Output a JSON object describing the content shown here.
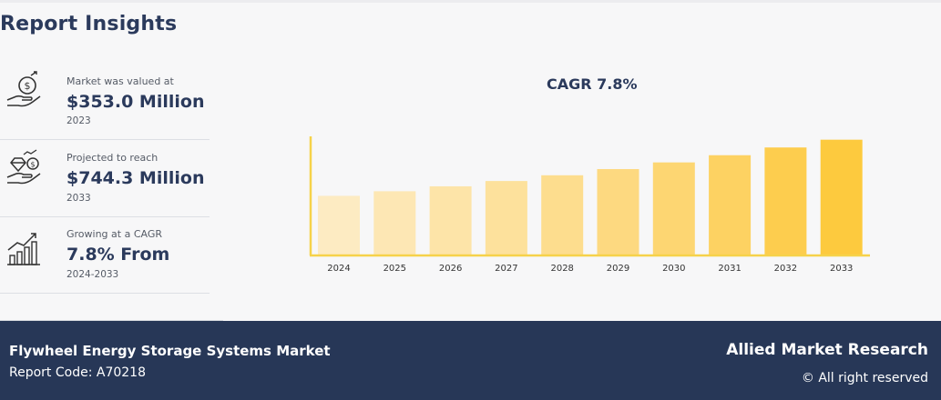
{
  "header": {
    "title": "Report Insights"
  },
  "stats": [
    {
      "caption": "Market was valued at",
      "value": "$353.0 Million",
      "sub": "2023",
      "icon": "money-hand-icon"
    },
    {
      "caption": "Projected to reach",
      "value": "$744.3 Million",
      "sub": "2033",
      "icon": "diamond-coin-hand-icon"
    },
    {
      "caption": "Growing at a CAGR",
      "value": "7.8% From",
      "sub": "2024-2033",
      "icon": "growth-bar-chart-icon"
    }
  ],
  "chart_data": {
    "type": "bar",
    "title": "CAGR 7.8%",
    "categories": [
      "2024",
      "2025",
      "2026",
      "2027",
      "2028",
      "2029",
      "2030",
      "2031",
      "2032",
      "2033"
    ],
    "values": [
      380.5,
      410.2,
      442.2,
      476.6,
      513.8,
      553.9,
      597.1,
      643.7,
      693.9,
      744.3
    ],
    "colors": [
      "#fdebc2",
      "#fde7b4",
      "#fde4a8",
      "#fde19c",
      "#fddd8e",
      "#fdd980",
      "#fdd672",
      "#fdd262",
      "#fdcd4e",
      "#fdca3e"
    ],
    "axis_color": "#f6d24a",
    "xlabel": "",
    "ylabel": "",
    "grid": false
  },
  "footer": {
    "market": "Flywheel Energy Storage Systems Market",
    "report_code": "Report Code: A70218",
    "brand": "Allied Market Research",
    "rights": "© All right reserved"
  }
}
